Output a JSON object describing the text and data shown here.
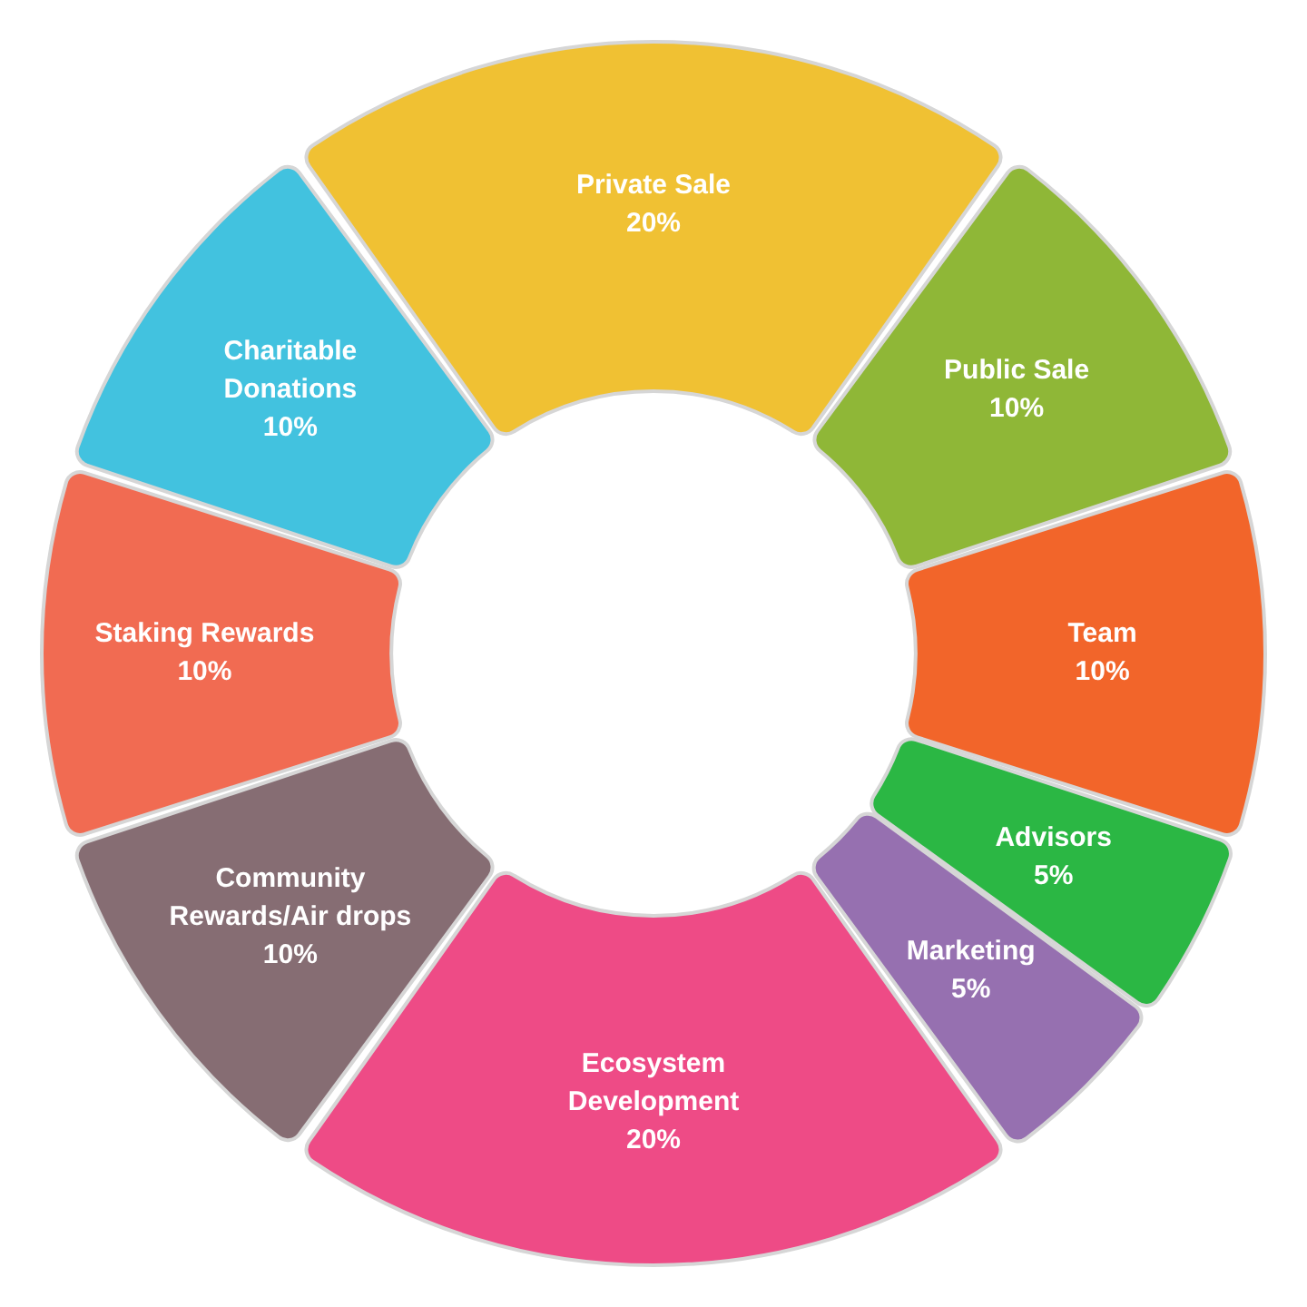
{
  "chart_data": {
    "type": "donut",
    "categories": [
      "Private Sale",
      "Public Sale",
      "Team",
      "Advisors",
      "Marketing",
      "Ecosystem Development",
      "Community Rewards/Air drops",
      "Staking Rewards",
      "Charitable Donations"
    ],
    "values": [
      20,
      10,
      10,
      5,
      5,
      20,
      10,
      10,
      10
    ],
    "colors": [
      "#f0c133",
      "#8fb737",
      "#f2652a",
      "#2bb744",
      "#9670b0",
      "#ee4b86",
      "#866d73",
      "#f16b52",
      "#42c2df"
    ],
    "value_labels": [
      "20%",
      "10%",
      "10%",
      "5%",
      "5%",
      "20%",
      "10%",
      "10%",
      "10%"
    ]
  }
}
